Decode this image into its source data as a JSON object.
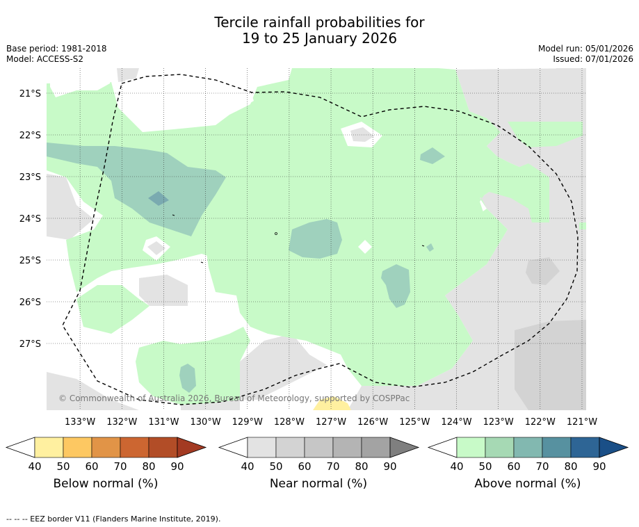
{
  "title_line1": "Tercile rainfall probabilities for",
  "title_line2": "19 to 25 January 2026",
  "meta_left": [
    "Base period: 1981-2018",
    "Model: ACCESS-S2"
  ],
  "meta_right": [
    "Model run: 05/01/2026",
    "Issued: 07/01/2026"
  ],
  "copyright": "© Commonwealth of Australia 2026, Bureau of Meteorology, supported by COSPPac",
  "lat_labels": [
    "21°S",
    "22°S",
    "23°S",
    "24°S",
    "25°S",
    "26°S",
    "27°S"
  ],
  "lat_values": [
    -21,
    -22,
    -23,
    -24,
    -25,
    -26,
    -27
  ],
  "lon_labels": [
    "133°W",
    "132°W",
    "131°W",
    "130°W",
    "129°W",
    "128°W",
    "127°W",
    "126°W",
    "125°W",
    "124°W",
    "123°W",
    "122°W",
    "121°W"
  ],
  "lon_values": [
    -133,
    -132,
    -131,
    -130,
    -129,
    -128,
    -127,
    -126,
    -125,
    -124,
    -123,
    -122,
    -121
  ],
  "map_extent": {
    "lon": [
      -133.8,
      -120.9
    ],
    "lat": [
      -28.6,
      -20.4
    ]
  },
  "colorbars": [
    {
      "label": "Below normal (%)",
      "ticks": [
        "40",
        "50",
        "60",
        "70",
        "80",
        "90"
      ],
      "colors": [
        "#fff0a0",
        "#fdc862",
        "#e19447",
        "#cc6631",
        "#b24d27"
      ],
      "extend_color": "#a33a22"
    },
    {
      "label": "Near normal (%)",
      "ticks": [
        "40",
        "50",
        "60",
        "70",
        "80",
        "90"
      ],
      "colors": [
        "#e3e3e3",
        "#d3d3d3",
        "#c6c6c6",
        "#b4b4b4",
        "#a3a3a3"
      ],
      "extend_color": "#7f7f7f"
    },
    {
      "label": "Above normal (%)",
      "ticks": [
        "40",
        "50",
        "60",
        "70",
        "80",
        "90"
      ],
      "colors": [
        "#c8fac8",
        "#a6d9b4",
        "#82b8b0",
        "#5791a0",
        "#2e6595"
      ],
      "extend_color": "#1a4f87"
    }
  ],
  "footer": "--  --  -- EEZ border V11 (Flanders Marine Institute, 2019)."
}
